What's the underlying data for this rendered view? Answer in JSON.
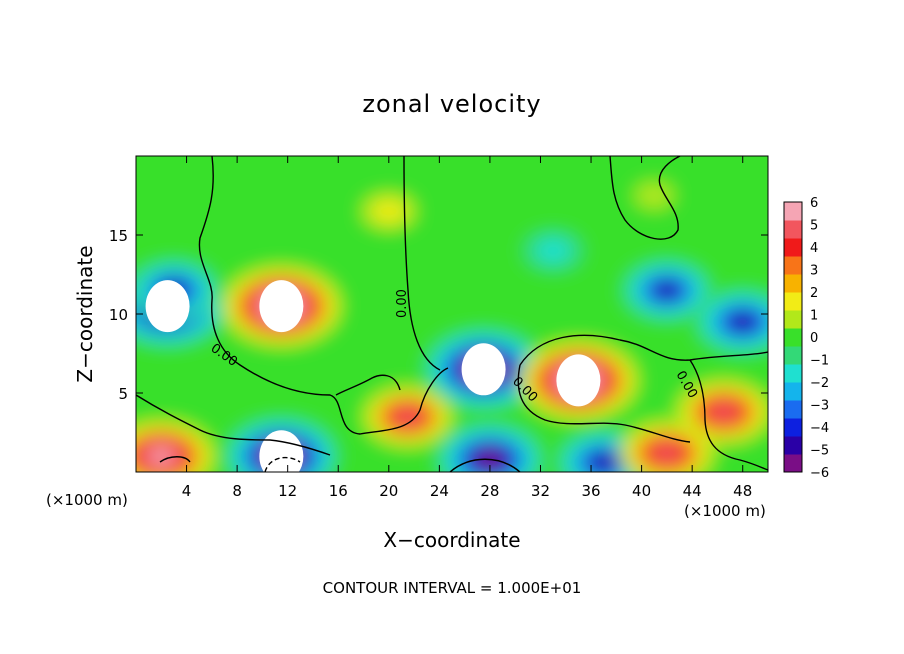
{
  "chart_data": {
    "type": "heatmap",
    "title": "zonal velocity",
    "xlabel": "X−coordinate",
    "ylabel": "Z−coordinate",
    "x_unit": "(×1000 m)",
    "xlim": [
      0,
      50
    ],
    "ylim": [
      0,
      20
    ],
    "x_ticks": [
      4,
      8,
      12,
      16,
      20,
      24,
      28,
      32,
      36,
      40,
      44,
      48
    ],
    "y_ticks": [
      5,
      10,
      15
    ],
    "colorbar": {
      "min": -6,
      "max": 6,
      "ticks": [
        6,
        5,
        4,
        3,
        2,
        1,
        0,
        -1,
        -2,
        -3,
        -4,
        -5,
        -6
      ],
      "tick_labels": [
        "6",
        "5",
        "4",
        "3",
        "2",
        "1",
        "0",
        "−1",
        "−2",
        "−3",
        "−4",
        "−5",
        "−6"
      ],
      "colors": [
        "#7a0e86",
        "#2a00a6",
        "#0d20e0",
        "#1a6cf0",
        "#14b4ec",
        "#1fe0d0",
        "#33d977",
        "#39e02a",
        "#b2e81a",
        "#f2ec16",
        "#f8b200",
        "#f87418",
        "#f01a1a",
        "#f2565e",
        "#f5a5b4"
      ]
    },
    "contour_labels": [
      "0.00",
      "0.00",
      "0.00",
      "0.00",
      "0.00"
    ],
    "contour_interval": "CONTOUR INTERVAL = 1.000E+01",
    "features": [
      {
        "x": 2.5,
        "z": 10.5,
        "value": -7
      },
      {
        "x": 11.5,
        "z": 10.5,
        "value": 7
      },
      {
        "x": 21.5,
        "z": 3.5,
        "value": 4.5
      },
      {
        "x": 27.5,
        "z": 6.5,
        "value": -7
      },
      {
        "x": 35.0,
        "z": 5.8,
        "value": 7
      },
      {
        "x": 46.5,
        "z": 3.8,
        "value": 5
      },
      {
        "x": 11.5,
        "z": 1.0,
        "value": -6.5
      },
      {
        "x": 2.0,
        "z": 1.0,
        "value": 6
      },
      {
        "x": 28.0,
        "z": 0.8,
        "value": -6
      },
      {
        "x": 37.0,
        "z": 0.6,
        "value": -5
      },
      {
        "x": 42.0,
        "z": 1.2,
        "value": 5
      },
      {
        "x": 3.0,
        "z": 11.5,
        "value": -4.5
      },
      {
        "x": 42.0,
        "z": 11.5,
        "value": -4.5
      },
      {
        "x": 48.0,
        "z": 9.5,
        "value": -5
      },
      {
        "x": 20.0,
        "z": 16.5,
        "value": 1.5
      },
      {
        "x": 41.0,
        "z": 17.5,
        "value": 0.2
      },
      {
        "x": 33.0,
        "z": 14.0,
        "value": -2
      }
    ]
  }
}
